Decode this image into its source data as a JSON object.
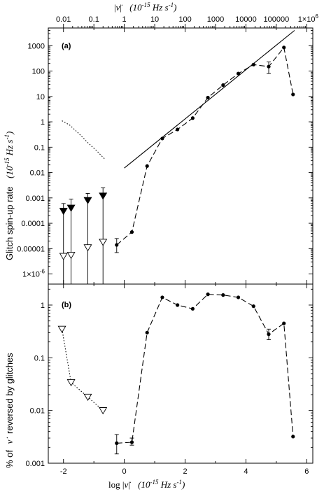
{
  "top_axis": {
    "label_prefix": "|",
    "label_nudot": "ν̇",
    "label_suffix": "|",
    "label_units": "(10",
    "label_exp": "-15",
    "label_units2": " Hz s",
    "label_exp2": "-1",
    "label_close": ")",
    "ticks": [
      "0.01",
      "0.1",
      "1",
      "10",
      "100",
      "1000",
      "10000",
      "100000"
    ],
    "last_tick_base": "1×10",
    "last_tick_exp": "6"
  },
  "bottom_axis": {
    "label_log": "log |",
    "label_nudot": "ν̇",
    "label_bar": "|",
    "label_units": "(10",
    "label_exp": "-15",
    "label_units2": " Hz s",
    "label_exp2": "-1",
    "label_close": ")",
    "ticks": [
      "-2",
      "0",
      "2",
      "4",
      "6"
    ]
  },
  "panel_a": {
    "tag": "(a)",
    "ylabel_main": "Glitch spin-up rate",
    "ylabel_units": "(10",
    "ylabel_exp": "-15",
    "ylabel_units2": " Hz s",
    "ylabel_exp2": "-1",
    "ylabel_close": ")",
    "yticks": [
      "1000",
      "100",
      "10",
      "1",
      "0.1",
      "0.01",
      "0.001",
      "0.0001",
      "0.00001"
    ],
    "ytick_last_base": "1×10",
    "ytick_last_exp": "-6"
  },
  "panel_b": {
    "tag": "(b)",
    "ylabel_pct": "% of",
    "ylabel_nudot": "ν̇",
    "ylabel_rest": "reversed by glitches",
    "yticks": [
      "1",
      "0.1",
      "0.01",
      "0.001"
    ]
  },
  "chart_data": [
    {
      "type": "line",
      "panel": "a",
      "x_scale": "log |ν̇| (10^-15 Hz s^-1)",
      "y_scale": "log",
      "xlim": [
        -2.5,
        6.2
      ],
      "ylim": [
        4e-07,
        5000
      ],
      "series": [
        {
          "style": "dashed with filled circles",
          "x": [
            -0.25,
            0.25,
            0.75,
            1.25,
            1.75,
            2.25,
            2.75,
            3.25,
            3.75,
            4.25,
            4.75,
            5.25,
            5.55
          ],
          "y": [
            1.4e-05,
            4.5e-05,
            0.018,
            0.22,
            0.5,
            1.4,
            9,
            28,
            80,
            180,
            150,
            850,
            12
          ],
          "err_low": [
            7e-06,
            0,
            0,
            0,
            0,
            0,
            0,
            0,
            0,
            0,
            80,
            0,
            0
          ],
          "err_high": [
            2.5e-05,
            0,
            0,
            0,
            0,
            0,
            0,
            0,
            0,
            0,
            230,
            0,
            0
          ]
        },
        {
          "style": "solid line",
          "x": [
            0.0,
            5.6
          ],
          "y": [
            0.015,
            4000
          ]
        },
        {
          "style": "dotted",
          "x": [
            -2.05,
            -1.8,
            -1.5,
            -1.2,
            -0.9,
            -0.65
          ],
          "y": [
            1.1,
            0.75,
            0.35,
            0.15,
            0.07,
            0.035
          ]
        },
        {
          "style": "filled down triangles with error bars",
          "x": [
            -2.0,
            -1.75,
            -1.2,
            -0.7
          ],
          "y": [
            0.0003,
            0.0004,
            0.0008,
            0.0012
          ],
          "err_high": [
            0.0006,
            0.0009,
            0.0015,
            0.0025
          ],
          "err_low": [
            4e-07,
            4e-07,
            4e-07,
            4e-07
          ]
        },
        {
          "style": "open down triangles",
          "x": [
            -2.0,
            -1.75,
            -1.2,
            -0.7
          ],
          "y": [
            5e-06,
            5.5e-06,
            1.1e-05,
            1.8e-05
          ]
        }
      ]
    },
    {
      "type": "line",
      "panel": "b",
      "x_scale": "log |ν̇| (10^-15 Hz s^-1)",
      "y_scale": "log",
      "xlim": [
        -2.5,
        6.2
      ],
      "ylim": [
        0.001,
        2.5
      ],
      "series": [
        {
          "style": "dashed with filled circles",
          "x": [
            -0.25,
            0.25,
            0.75,
            1.25,
            1.75,
            2.25,
            2.75,
            3.25,
            3.75,
            4.25,
            4.75,
            5.25,
            5.55
          ],
          "y": [
            0.0024,
            0.0025,
            0.3,
            1.4,
            1.0,
            0.85,
            1.6,
            1.55,
            1.4,
            0.95,
            0.28,
            0.45,
            0.0032
          ],
          "err_low": [
            0.0015,
            0.0022,
            0,
            0,
            0,
            0,
            0,
            0,
            0,
            0,
            0.22,
            0,
            0
          ],
          "err_high": [
            0.0035,
            0.003,
            0,
            0,
            0,
            0,
            0,
            0,
            0,
            0,
            0.35,
            0,
            0
          ]
        },
        {
          "style": "dotted with open down triangles",
          "x": [
            -2.05,
            -1.75,
            -1.2,
            -0.7
          ],
          "y": [
            0.35,
            0.034,
            0.018,
            0.01
          ]
        }
      ]
    }
  ]
}
